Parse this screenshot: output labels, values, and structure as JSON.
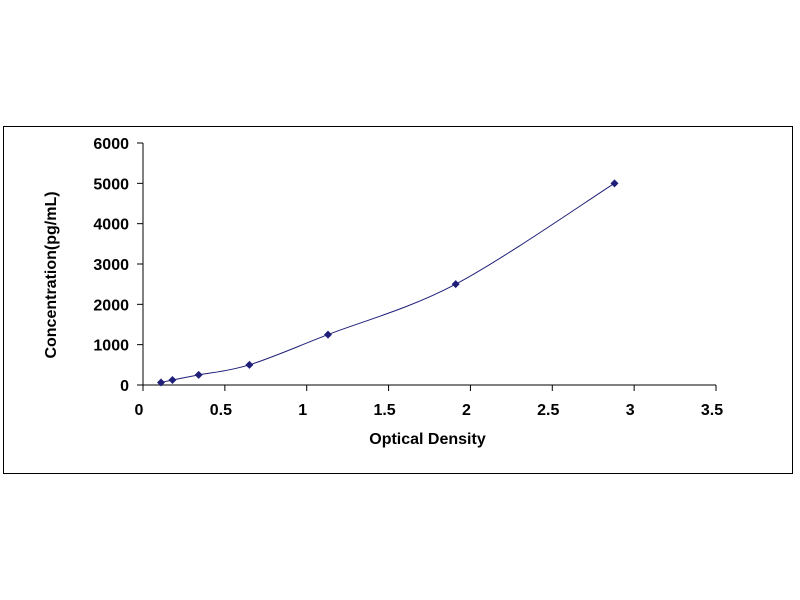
{
  "chart_data": {
    "type": "scatter",
    "title": "",
    "xlabel": "Optical Density",
    "ylabel": "Concentration(pg/mL)",
    "xlim": [
      0,
      3.5
    ],
    "ylim": [
      0,
      6000
    ],
    "x_ticks": [
      "0",
      "0.5",
      "1",
      "1.5",
      "2",
      "2.5",
      "3",
      "3.5"
    ],
    "y_ticks": [
      "0",
      "1000",
      "2000",
      "3000",
      "4000",
      "5000",
      "6000"
    ],
    "grid": false,
    "legend": "none",
    "marker": "diamond",
    "trendline": "smooth",
    "colors": {
      "marker": "#1f1f7a",
      "line": "#1f1f7a",
      "axis": "#000000"
    },
    "series": [
      {
        "x": [
          0.11,
          0.18,
          0.34,
          0.65,
          1.13,
          1.91,
          2.88
        ],
        "y": [
          62.5,
          125,
          250,
          500,
          1250,
          2500,
          5000
        ]
      }
    ]
  }
}
